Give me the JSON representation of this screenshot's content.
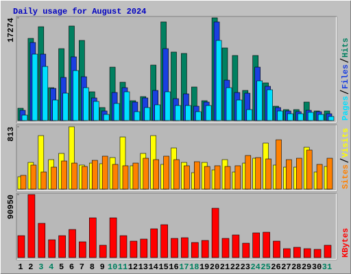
{
  "title": "Daily usage for August 2024",
  "chart_data": [
    {
      "type": "bar",
      "ylim": [
        0,
        17274
      ],
      "yticks": [
        17274
      ],
      "series": [
        {
          "name": "Hits",
          "color": "#008060",
          "values": [
            2073,
            13819,
            15777,
            5528,
            12092,
            15892,
            13474,
            4837,
            2188,
            8982,
            6449,
            3340,
            4031,
            9328,
            16583,
            11516,
            11286,
            5643,
            3340,
            17274,
            12207,
            10940,
            5067,
            10940,
            6334,
            2418,
            1843,
            1843,
            3109,
            1612,
            1612
          ]
        },
        {
          "name": "Files",
          "color": "#1a3fe0",
          "values": [
            1727,
            13128,
            11170,
            5412,
            7255,
            10710,
            7370,
            3800,
            1612,
            4722,
            5528,
            3109,
            3800,
            5067,
            12092,
            3685,
            4491,
            2418,
            3109,
            16583,
            6794,
            4722,
            4606,
            8982,
            5758,
            2188,
            1612,
            1497,
            1727,
            1497,
            1152
          ]
        },
        {
          "name": "Pages",
          "color": "#00e0ff",
          "values": [
            921,
            11170,
            9098,
            3455,
            4606,
            8407,
            5528,
            3224,
            1036,
            2879,
            4837,
            1497,
            2188,
            2649,
            4837,
            2534,
            2534,
            1497,
            2534,
            13474,
            5528,
            3455,
            1843,
            6679,
            5182,
            1612,
            1152,
            1152,
            1382,
            1036,
            691
          ]
        }
      ]
    },
    {
      "type": "bar",
      "ylim": [
        0,
        813
      ],
      "yticks": [
        813
      ],
      "series": [
        {
          "name": "Visits",
          "color": "#ffff00",
          "values": [
            161,
            348,
            697,
            384,
            465,
            813,
            313,
            339,
            331,
            411,
            679,
            304,
            465,
            697,
            322,
            536,
            348,
            214,
            348,
            250,
            384,
            223,
            339,
            402,
            599,
            313,
            286,
            286,
            545,
            223,
            295
          ]
        },
        {
          "name": "Sites",
          "color": "#ff8000",
          "values": [
            179,
            313,
            223,
            286,
            366,
            339,
            295,
            375,
            429,
            322,
            304,
            339,
            402,
            384,
            429,
            384,
            304,
            357,
            295,
            304,
            295,
            304,
            438,
            411,
            393,
            643,
            384,
            402,
            509,
            322,
            402
          ]
        }
      ]
    },
    {
      "type": "bar",
      "ylim": [
        0,
        90950
      ],
      "yticks": [
        90950
      ],
      "categories": [
        "1",
        "2",
        "3",
        "4",
        "5",
        "6",
        "7",
        "8",
        "9",
        "10",
        "11",
        "12",
        "13",
        "14",
        "15",
        "16",
        "17",
        "18",
        "19",
        "20",
        "21",
        "22",
        "23",
        "24",
        "25",
        "26",
        "27",
        "28",
        "29",
        "30",
        "31"
      ],
      "category_colors": [
        "#000000",
        "#000000",
        "#008060",
        "#008060",
        "#000000",
        "#000000",
        "#000000",
        "#000000",
        "#000000",
        "#008060",
        "#008060",
        "#000000",
        "#000000",
        "#000000",
        "#000000",
        "#000000",
        "#008060",
        "#008060",
        "#000000",
        "#000000",
        "#000000",
        "#000000",
        "#000000",
        "#008060",
        "#008060",
        "#000000",
        "#000000",
        "#000000",
        "#000000",
        "#000000",
        "#008060"
      ],
      "series": [
        {
          "name": "KBytes",
          "color": "#ff0000",
          "values": [
            31636,
            90950,
            49430,
            25704,
            31636,
            40533,
            22738,
            57339,
            17795,
            57339,
            31636,
            23727,
            26693,
            41522,
            47453,
            27681,
            28670,
            21749,
            24715,
            71180,
            27681,
            32624,
            20761,
            35590,
            36578,
            23727,
            12852,
            14829,
            12852,
            11863,
            17795
          ]
        }
      ]
    }
  ]
}
